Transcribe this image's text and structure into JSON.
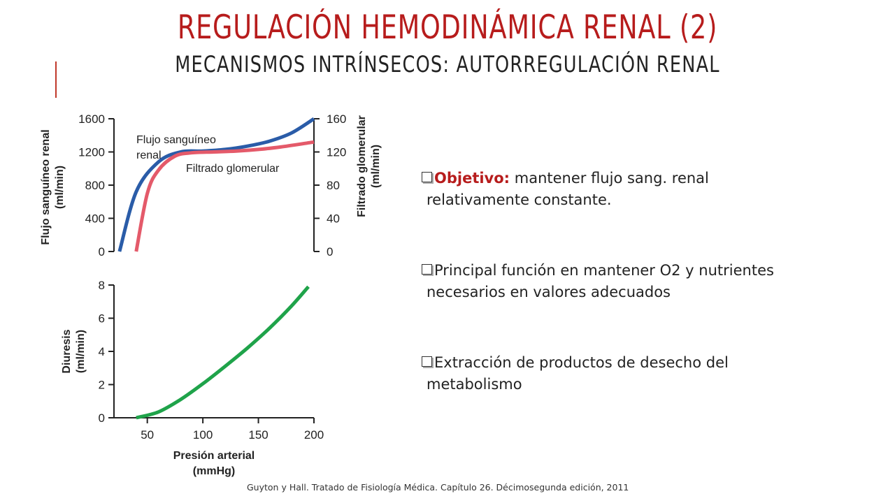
{
  "slide": {
    "title": "REGULACIÓN HEMODINÁMICA RENAL (2)",
    "subtitle": "MECANISMOS INTRÍNSECOS: AUTORREGULACIÓN RENAL",
    "accent_color": "#b71c1c",
    "citation": "Guyton y Hall. Tratado de Fisiología Médica. Capítulo 26. Décimosegunda edición, 2011"
  },
  "bullets": [
    {
      "label": "Objetivo:",
      "line1": " mantener flujo sang. renal",
      "line2": "relativamente constante."
    },
    {
      "label": "",
      "line1": "Principal función en mantener O2 y nutrientes",
      "line2": "necesarios en valores adecuados"
    },
    {
      "label": "",
      "line1": "Extracción de productos de desecho del",
      "line2": "metabolismo"
    }
  ],
  "chart_data": [
    {
      "type": "line",
      "ylabel": "Flujo sanguíneo renal (ml/min)",
      "y2label": "Filtrado glomerular (ml/min)",
      "ylim": [
        0,
        1600
      ],
      "y2lim": [
        0,
        160
      ],
      "yticks": [
        0,
        400,
        800,
        1200,
        1600
      ],
      "y2ticks": [
        0,
        40,
        80,
        120,
        160
      ],
      "xlim": [
        20,
        200
      ],
      "series": [
        {
          "name": "Flujo sanguíneo renal",
          "axis": "left",
          "color": "#2a5ca8",
          "x": [
            25,
            40,
            60,
            80,
            100,
            120,
            140,
            160,
            180,
            200
          ],
          "y": [
            0,
            720,
            1080,
            1200,
            1210,
            1230,
            1270,
            1330,
            1430,
            1600
          ]
        },
        {
          "name": "Filtrado glomerular",
          "axis": "right",
          "color": "#e45a6a",
          "x": [
            40,
            50,
            60,
            75,
            90,
            110,
            130,
            150,
            170,
            200
          ],
          "y": [
            0,
            70,
            98,
            115,
            119,
            120,
            121,
            123,
            126,
            132
          ]
        }
      ]
    },
    {
      "type": "line",
      "xlabel": "Presión arterial (mmHg)",
      "ylabel": "Diuresis (ml/min)",
      "xlim": [
        20,
        200
      ],
      "ylim": [
        0,
        8
      ],
      "xticks": [
        50,
        100,
        150,
        200
      ],
      "yticks": [
        0,
        2,
        4,
        6,
        8
      ],
      "series": [
        {
          "name": "",
          "color": "#1fa34a",
          "x": [
            40,
            60,
            80,
            100,
            120,
            140,
            160,
            180,
            195
          ],
          "y": [
            0,
            0.35,
            1.1,
            2.05,
            3.1,
            4.2,
            5.4,
            6.75,
            7.9
          ]
        }
      ]
    }
  ]
}
